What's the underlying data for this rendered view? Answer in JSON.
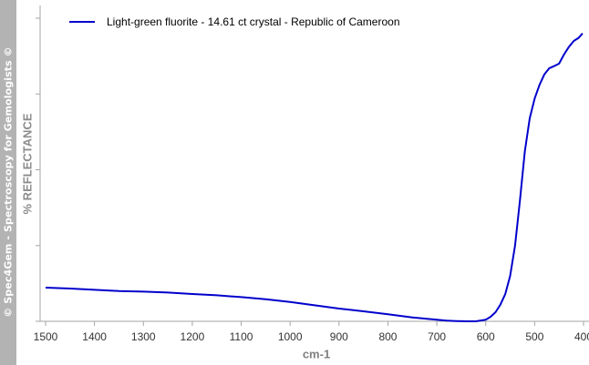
{
  "watermark": "© Spec4Gem - Spectroscopy for Gemologists ©",
  "chart_data": {
    "type": "line",
    "title": "",
    "xlabel": "cm-1",
    "ylabel": "% REFLECTANCE",
    "xlim": [
      1500,
      400
    ],
    "x_reversed": true,
    "x_ticks": [
      1500,
      1400,
      1300,
      1200,
      1100,
      1000,
      900,
      800,
      700,
      600,
      500,
      400
    ],
    "x_tick_labels": [
      "1500",
      "1400",
      "1300",
      "1200",
      "1100",
      "1000",
      "900",
      "800",
      "700",
      "600",
      "500",
      "400"
    ],
    "y_ticks_count": 5,
    "y_tick_labels_shown": false,
    "grid": false,
    "legend_position": "top-left",
    "series": [
      {
        "name": "Light-green fluorite - 14.61 ct crystal - Republic of Cameroon",
        "color": "#0000cc",
        "x": [
          1500,
          1450,
          1400,
          1350,
          1300,
          1250,
          1200,
          1150,
          1100,
          1050,
          1000,
          950,
          900,
          850,
          800,
          750,
          700,
          680,
          660,
          640,
          620,
          600,
          590,
          580,
          570,
          560,
          550,
          540,
          530,
          520,
          510,
          500,
          490,
          480,
          470,
          460,
          450,
          440,
          430,
          420,
          410,
          402
        ],
        "y": [
          11.1,
          10.8,
          10.4,
          10.0,
          9.8,
          9.5,
          9.0,
          8.6,
          8.0,
          7.3,
          6.4,
          5.3,
          4.2,
          3.3,
          2.3,
          1.3,
          0.5,
          0.2,
          0.1,
          0.0,
          0.0,
          0.5,
          1.5,
          3.0,
          5.5,
          9.0,
          15.0,
          25.0,
          40.0,
          56.0,
          67.0,
          73.5,
          78.0,
          81.5,
          83.5,
          84.2,
          85.0,
          88.0,
          90.5,
          92.5,
          93.5,
          95.0
        ]
      }
    ]
  }
}
